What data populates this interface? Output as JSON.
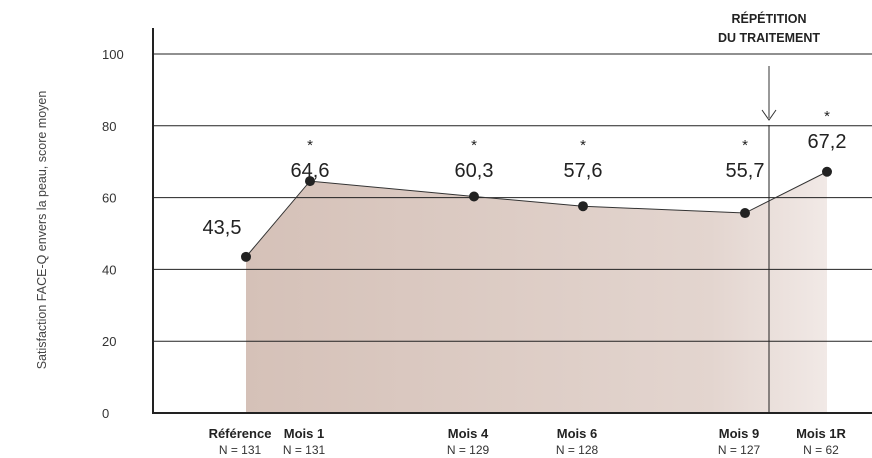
{
  "chart_data": {
    "type": "line",
    "ylabel": "Satisfaction FACE-Q envers la peau, score moyen",
    "xlabel": "",
    "ylim": [
      0,
      100
    ],
    "yticks": [
      0,
      20,
      40,
      60,
      80,
      100
    ],
    "grid": true,
    "area_fill": true,
    "categories": [
      "Référence",
      "Mois 1",
      "Mois 4",
      "Mois 6",
      "Mois 9",
      "Mois 1R"
    ],
    "n_labels": [
      "N = 131",
      "N = 131",
      "N = 129",
      "N = 128",
      "N = 127",
      "N = 62"
    ],
    "values": [
      43.5,
      64.6,
      60.3,
      57.6,
      55.7,
      67.2
    ],
    "value_labels": [
      "43,5",
      "64,6",
      "60,3",
      "57,6",
      "55,7",
      "67,2"
    ],
    "significance": [
      "",
      "*",
      "*",
      "*",
      "*",
      "*"
    ],
    "annotation": {
      "lines": [
        "RÉPÉTITION",
        "DU TRAITEMENT"
      ]
    },
    "colors": {
      "fill": "#dcc9c2",
      "line": "#333333",
      "point": "#222222",
      "grid": "#222222"
    }
  }
}
